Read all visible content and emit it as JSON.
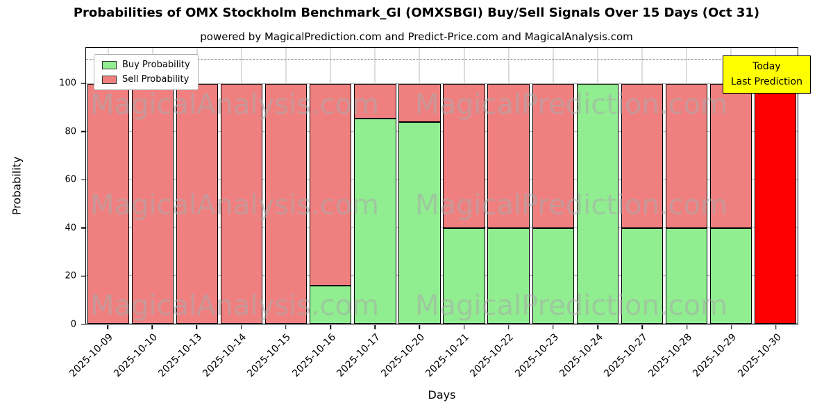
{
  "chart_data": {
    "type": "bar",
    "stacked": true,
    "title": "Probabilities of OMX Stockholm Benchmark_GI (OMXSBGI) Buy/Sell Signals Over 15 Days (Oct 31)",
    "subtitle": "powered by MagicalPrediction.com and Predict-Price.com and MagicalAnalysis.com",
    "xlabel": "Days",
    "ylabel": "Probability",
    "ylim": [
      0,
      115
    ],
    "yticks": [
      0,
      20,
      40,
      60,
      80,
      100
    ],
    "dashed_hline": 110,
    "grid": true,
    "legend_position": "upper left",
    "categories": [
      "2025-10-09",
      "2025-10-10",
      "2025-10-13",
      "2025-10-14",
      "2025-10-15",
      "2025-10-16",
      "2025-10-17",
      "2025-10-20",
      "2025-10-21",
      "2025-10-22",
      "2025-10-23",
      "2025-10-24",
      "2025-10-27",
      "2025-10-28",
      "2025-10-29",
      "2025-10-30"
    ],
    "series": [
      {
        "name": "Buy Probability",
        "color": "#90ee90",
        "in_legend": true,
        "values": [
          0,
          0,
          0,
          0,
          0,
          16,
          85.5,
          84,
          40,
          40,
          40,
          100,
          40,
          40,
          40,
          0
        ]
      },
      {
        "name": "Sell Probability",
        "color": "#f08080",
        "in_legend": true,
        "values": [
          100,
          100,
          100,
          100,
          100,
          84,
          14.5,
          16,
          60,
          60,
          60,
          0,
          60,
          60,
          60,
          0
        ]
      },
      {
        "name": "Today Last Prediction",
        "color": "#ff0000",
        "in_legend": false,
        "values": [
          0,
          0,
          0,
          0,
          0,
          0,
          0,
          0,
          0,
          0,
          0,
          0,
          0,
          0,
          0,
          100
        ]
      }
    ]
  },
  "annotation_box": {
    "lines": [
      "Today",
      "Last Prediction"
    ],
    "bg_color": "#ffff00"
  },
  "watermarks": {
    "left_text": "MagicalAnalysis.com",
    "right_text": "MagicalPrediction.com"
  }
}
